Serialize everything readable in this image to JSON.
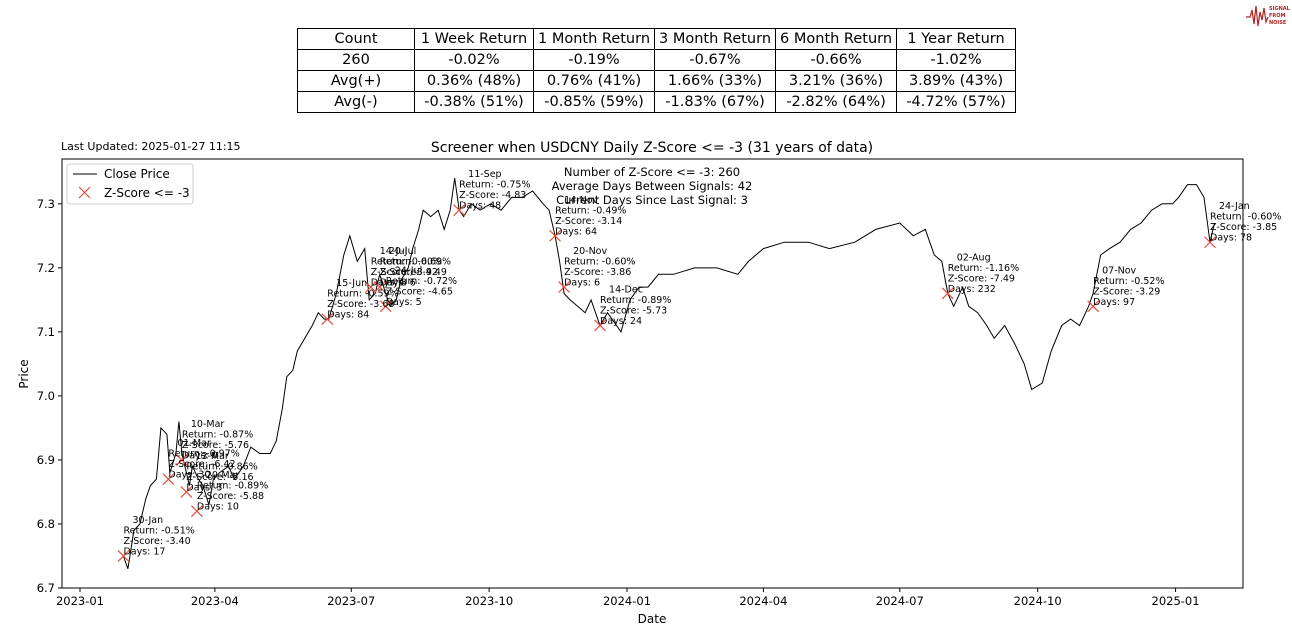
{
  "logo": {
    "text": [
      "SIGNAL",
      "FROM",
      "NOISE"
    ],
    "color": "#b22222"
  },
  "last_updated": "Last Updated: 2025-01-27 11:15",
  "table": {
    "header": [
      "Count",
      "1 Week Return",
      "1 Month Return",
      "3 Month Return",
      "6 Month Return",
      "1 Year Return"
    ],
    "rows": [
      [
        "260",
        "-0.02%",
        "-0.19%",
        "-0.67%",
        "-0.66%",
        "-1.02%"
      ],
      [
        "Avg(+)",
        "0.36% (48%)",
        "0.76% (41%)",
        "1.66% (33%)",
        "3.21% (36%)",
        "3.89% (43%)"
      ],
      [
        "Avg(-)",
        "-0.38% (51%)",
        "-0.85% (59%)",
        "-1.83% (67%)",
        "-2.82% (64%)",
        "-4.72% (57%)"
      ]
    ]
  },
  "chart_data": {
    "type": "line",
    "title": "Screener when USDCNY Daily Z-Score <= -3 (31 years of data)",
    "xlabel": "Date",
    "ylabel": "Price",
    "xlim": [
      "2022-12-20",
      "2025-02-15"
    ],
    "ylim": [
      6.7,
      7.37
    ],
    "x_ticks": [
      "2023-01",
      "2023-04",
      "2023-07",
      "2023-10",
      "2024-01",
      "2024-04",
      "2024-07",
      "2024-10",
      "2025-01"
    ],
    "y_ticks": [
      6.7,
      6.8,
      6.9,
      7.0,
      7.1,
      7.2,
      7.3
    ],
    "legend": {
      "position": "top-left",
      "entries": [
        "Close Price",
        "Z-Score <= -3"
      ]
    },
    "colors": {
      "line": "#000000",
      "marker": "#e74c3c"
    },
    "info_box": [
      "Number of Z-Score <= -3: 260",
      "Average Days Between Signals: 42",
      "Current Days Since Last Signal: 3"
    ],
    "series": [
      {
        "name": "Close Price",
        "points": [
          [
            "2023-01-30",
            6.75
          ],
          [
            "2023-02-02",
            6.73
          ],
          [
            "2023-02-06",
            6.79
          ],
          [
            "2023-02-10",
            6.8
          ],
          [
            "2023-02-14",
            6.84
          ],
          [
            "2023-02-17",
            6.86
          ],
          [
            "2023-02-21",
            6.87
          ],
          [
            "2023-02-24",
            6.95
          ],
          [
            "2023-02-28",
            6.94
          ],
          [
            "2023-03-02",
            6.88
          ],
          [
            "2023-03-06",
            6.91
          ],
          [
            "2023-03-08",
            6.96
          ],
          [
            "2023-03-10",
            6.91
          ],
          [
            "2023-03-13",
            6.88
          ],
          [
            "2023-03-15",
            6.86
          ],
          [
            "2023-03-17",
            6.89
          ],
          [
            "2023-03-21",
            6.87
          ],
          [
            "2023-03-24",
            6.86
          ],
          [
            "2023-03-28",
            6.83
          ],
          [
            "2023-03-31",
            6.87
          ],
          [
            "2023-04-04",
            6.88
          ],
          [
            "2023-04-10",
            6.89
          ],
          [
            "2023-04-14",
            6.87
          ],
          [
            "2023-04-20",
            6.89
          ],
          [
            "2023-04-25",
            6.92
          ],
          [
            "2023-05-01",
            6.91
          ],
          [
            "2023-05-08",
            6.91
          ],
          [
            "2023-05-12",
            6.93
          ],
          [
            "2023-05-16",
            6.98
          ],
          [
            "2023-05-19",
            7.03
          ],
          [
            "2023-05-23",
            7.04
          ],
          [
            "2023-05-26",
            7.07
          ],
          [
            "2023-05-31",
            7.09
          ],
          [
            "2023-06-05",
            7.11
          ],
          [
            "2023-06-09",
            7.13
          ],
          [
            "2023-06-13",
            7.12
          ],
          [
            "2023-06-16",
            7.12
          ],
          [
            "2023-06-21",
            7.16
          ],
          [
            "2023-06-26",
            7.22
          ],
          [
            "2023-06-30",
            7.25
          ],
          [
            "2023-07-05",
            7.21
          ],
          [
            "2023-07-10",
            7.23
          ],
          [
            "2023-07-13",
            7.15
          ],
          [
            "2023-07-17",
            7.16
          ],
          [
            "2023-07-20",
            7.19
          ],
          [
            "2023-07-24",
            7.16
          ],
          [
            "2023-07-27",
            7.14
          ],
          [
            "2023-07-31",
            7.15
          ],
          [
            "2023-08-03",
            7.18
          ],
          [
            "2023-08-08",
            7.2
          ],
          [
            "2023-08-11",
            7.23
          ],
          [
            "2023-08-15",
            7.26
          ],
          [
            "2023-08-18",
            7.29
          ],
          [
            "2023-08-23",
            7.28
          ],
          [
            "2023-08-28",
            7.29
          ],
          [
            "2023-09-01",
            7.26
          ],
          [
            "2023-09-05",
            7.29
          ],
          [
            "2023-09-08",
            7.34
          ],
          [
            "2023-09-11",
            7.29
          ],
          [
            "2023-09-14",
            7.28
          ],
          [
            "2023-09-19",
            7.3
          ],
          [
            "2023-09-25",
            7.29
          ],
          [
            "2023-10-02",
            7.3
          ],
          [
            "2023-10-09",
            7.29
          ],
          [
            "2023-10-16",
            7.31
          ],
          [
            "2023-10-23",
            7.31
          ],
          [
            "2023-10-30",
            7.32
          ],
          [
            "2023-11-06",
            7.3
          ],
          [
            "2023-11-10",
            7.29
          ],
          [
            "2023-11-14",
            7.25
          ],
          [
            "2023-11-17",
            7.21
          ],
          [
            "2023-11-20",
            7.16
          ],
          [
            "2023-11-24",
            7.15
          ],
          [
            "2023-11-29",
            7.14
          ],
          [
            "2023-12-04",
            7.13
          ],
          [
            "2023-12-08",
            7.15
          ],
          [
            "2023-12-14",
            7.11
          ],
          [
            "2023-12-19",
            7.13
          ],
          [
            "2023-12-22",
            7.12
          ],
          [
            "2023-12-28",
            7.1
          ],
          [
            "2024-01-03",
            7.15
          ],
          [
            "2024-01-09",
            7.17
          ],
          [
            "2024-01-15",
            7.17
          ],
          [
            "2024-01-22",
            7.19
          ],
          [
            "2024-02-01",
            7.19
          ],
          [
            "2024-02-15",
            7.2
          ],
          [
            "2024-03-01",
            7.2
          ],
          [
            "2024-03-15",
            7.19
          ],
          [
            "2024-03-22",
            7.21
          ],
          [
            "2024-04-01",
            7.23
          ],
          [
            "2024-04-15",
            7.24
          ],
          [
            "2024-05-01",
            7.24
          ],
          [
            "2024-05-15",
            7.23
          ],
          [
            "2024-06-01",
            7.24
          ],
          [
            "2024-06-15",
            7.26
          ],
          [
            "2024-07-01",
            7.27
          ],
          [
            "2024-07-10",
            7.25
          ],
          [
            "2024-07-18",
            7.26
          ],
          [
            "2024-07-24",
            7.22
          ],
          [
            "2024-07-29",
            7.21
          ],
          [
            "2024-08-02",
            7.16
          ],
          [
            "2024-08-06",
            7.14
          ],
          [
            "2024-08-12",
            7.17
          ],
          [
            "2024-08-16",
            7.14
          ],
          [
            "2024-08-22",
            7.13
          ],
          [
            "2024-08-28",
            7.11
          ],
          [
            "2024-09-02",
            7.09
          ],
          [
            "2024-09-09",
            7.11
          ],
          [
            "2024-09-16",
            7.08
          ],
          [
            "2024-09-22",
            7.05
          ],
          [
            "2024-09-27",
            7.01
          ],
          [
            "2024-10-04",
            7.02
          ],
          [
            "2024-10-10",
            7.07
          ],
          [
            "2024-10-17",
            7.11
          ],
          [
            "2024-10-23",
            7.12
          ],
          [
            "2024-10-29",
            7.11
          ],
          [
            "2024-11-04",
            7.14
          ],
          [
            "2024-11-07",
            7.16
          ],
          [
            "2024-11-12",
            7.22
          ],
          [
            "2024-11-18",
            7.23
          ],
          [
            "2024-11-25",
            7.24
          ],
          [
            "2024-12-02",
            7.26
          ],
          [
            "2024-12-09",
            7.27
          ],
          [
            "2024-12-16",
            7.29
          ],
          [
            "2024-12-23",
            7.3
          ],
          [
            "2024-12-30",
            7.3
          ],
          [
            "2025-01-03",
            7.31
          ],
          [
            "2025-01-09",
            7.33
          ],
          [
            "2025-01-15",
            7.33
          ],
          [
            "2025-01-20",
            7.31
          ],
          [
            "2025-01-24",
            7.24
          ],
          [
            "2025-01-27",
            7.27
          ]
        ]
      },
      {
        "name": "Z-Score <= -3",
        "points": [
          [
            "2023-01-30",
            6.75
          ],
          [
            "2023-03-01",
            6.87
          ],
          [
            "2023-03-10",
            6.9
          ],
          [
            "2023-03-13",
            6.85
          ],
          [
            "2023-03-20",
            6.82
          ],
          [
            "2023-06-15",
            7.12
          ],
          [
            "2023-07-14",
            7.17
          ],
          [
            "2023-07-20",
            7.17
          ],
          [
            "2023-07-24",
            7.14
          ],
          [
            "2023-09-11",
            7.29
          ],
          [
            "2023-11-14",
            7.25
          ],
          [
            "2023-11-20",
            7.17
          ],
          [
            "2023-12-14",
            7.11
          ],
          [
            "2024-08-02",
            7.16
          ],
          [
            "2024-11-07",
            7.14
          ],
          [
            "2025-01-24",
            7.24
          ]
        ]
      }
    ],
    "annotations": [
      {
        "date": "2023-01-30",
        "price": 6.75,
        "lines": [
          "30-Jan",
          "Return: -0.51%",
          "Z-Score: -3.40",
          "Days: 17"
        ]
      },
      {
        "date": "2023-03-10",
        "price": 6.9,
        "lines": [
          "10-Mar",
          "Return: -0.87%",
          "Z-Score: -5.76",
          "Days: 0"
        ]
      },
      {
        "date": "2023-03-01",
        "price": 6.87,
        "lines": [
          "01-Mar",
          "Return: -0.97%",
          "Z-Score: -6.42",
          "Days: 30"
        ]
      },
      {
        "date": "2023-03-13",
        "price": 6.85,
        "lines": [
          "13-Mar",
          "Return: -0.86%",
          "Z-Score: -5.16",
          "Days: 3"
        ]
      },
      {
        "date": "2023-03-20",
        "price": 6.82,
        "lines": [
          "20-Mar",
          "Return: -0.89%",
          "Z-Score: -5.88",
          "Days: 10"
        ]
      },
      {
        "date": "2023-06-15",
        "price": 7.12,
        "lines": [
          "15-Jun",
          "Return: -0.59%",
          "Z-Score: -3.68",
          "Days: 84"
        ]
      },
      {
        "date": "2023-07-20",
        "price": 7.17,
        "lines": [
          "20-Jul",
          "Return: -0.69%",
          "Z-Score: -4.49",
          "Days: 6"
        ]
      },
      {
        "date": "2023-07-14",
        "price": 7.17,
        "lines": [
          "14-Jul",
          "Return: -0.60%",
          "Z-Score: -3.92",
          "Days: 8"
        ]
      },
      {
        "date": "2023-07-24",
        "price": 7.14,
        "lines": [
          "24-Jul",
          "Return: -0.72%",
          "Z-Score: -4.65",
          "Days: 5"
        ]
      },
      {
        "date": "2023-09-11",
        "price": 7.29,
        "lines": [
          "11-Sep",
          "Return: -0.75%",
          "Z-Score: -4.83",
          "Days: 48"
        ]
      },
      {
        "date": "2023-11-14",
        "price": 7.25,
        "lines": [
          "14-Nov",
          "Return: -0.49%",
          "Z-Score: -3.14",
          "Days: 64"
        ]
      },
      {
        "date": "2023-11-20",
        "price": 7.17,
        "lines": [
          "20-Nov",
          "Return: -0.60%",
          "Z-Score: -3.86",
          "Days: 6"
        ]
      },
      {
        "date": "2023-12-14",
        "price": 7.11,
        "lines": [
          "14-Dec",
          "Return: -0.89%",
          "Z-Score: -5.73",
          "Days: 24"
        ]
      },
      {
        "date": "2024-08-02",
        "price": 7.16,
        "lines": [
          "02-Aug",
          "Return: -1.16%",
          "Z-Score: -7.49",
          "Days: 232"
        ]
      },
      {
        "date": "2024-11-07",
        "price": 7.14,
        "lines": [
          "07-Nov",
          "Return: -0.52%",
          "Z-Score: -3.29",
          "Days: 97"
        ]
      },
      {
        "date": "2025-01-24",
        "price": 7.24,
        "lines": [
          "24-Jan",
          "Return: -0.60%",
          "Z-Score: -3.85",
          "Days: 78"
        ]
      }
    ]
  }
}
